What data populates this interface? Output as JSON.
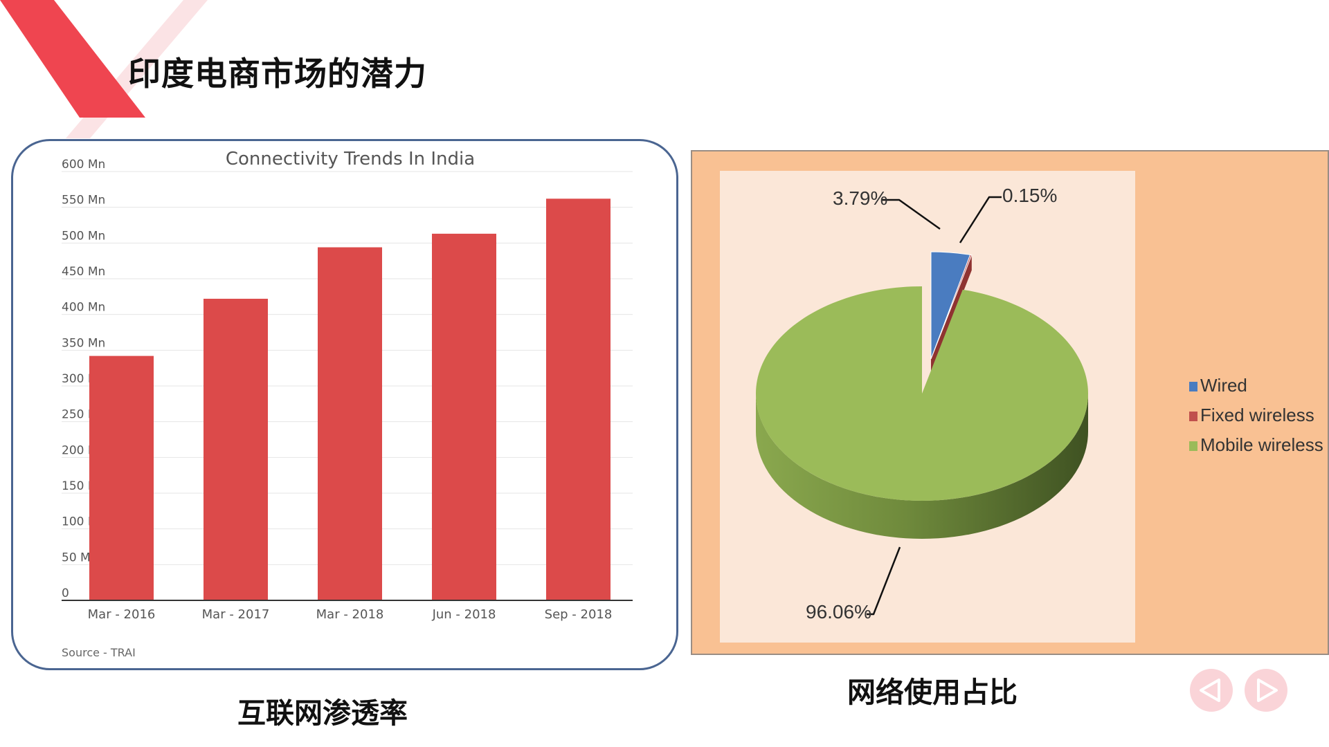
{
  "slide": {
    "title": "印度电商市场的潜力",
    "caption_left": "互联网渗透率",
    "caption_right": "网络使用占比"
  },
  "colors": {
    "accent": "#ef4550",
    "bar": "#dc4a4a",
    "wired": "#4a7cc0",
    "fixed_wireless": "#c0504d",
    "mobile_wireless": "#9bbb59",
    "panel_border": "#4a6591",
    "pie_bg": "#f9c193"
  },
  "navigation": {
    "prev_icon": "chevron-left-icon",
    "next_icon": "chevron-right-icon"
  },
  "chart_data": [
    {
      "type": "bar",
      "title": "Connectivity Trends In India",
      "categories": [
        "Mar - 2016",
        "Mar - 2017",
        "Mar - 2018",
        "Jun - 2018",
        "Sep - 2018"
      ],
      "values": [
        342,
        422,
        494,
        513,
        562
      ],
      "ylim": [
        0,
        600
      ],
      "yticks": [
        0,
        50,
        100,
        150,
        200,
        250,
        300,
        350,
        400,
        450,
        500,
        550,
        600
      ],
      "ytick_labels": [
        "0",
        "50 Mn",
        "100 Mn",
        "150 Mn",
        "200 Mn",
        "250 Mn",
        "300 Mn",
        "350 Mn",
        "400 Mn",
        "450 Mn",
        "500 Mn",
        "550 Mn",
        "600 Mn"
      ],
      "source": "Source - TRAI",
      "grid": true
    },
    {
      "type": "pie",
      "labels": [
        "Wired",
        "Fixed wireless",
        "Mobile wireless"
      ],
      "values": [
        3.79,
        0.15,
        96.06
      ],
      "value_labels": [
        "3.79%",
        "0.15%",
        "96.06%"
      ],
      "legend": "right"
    }
  ]
}
